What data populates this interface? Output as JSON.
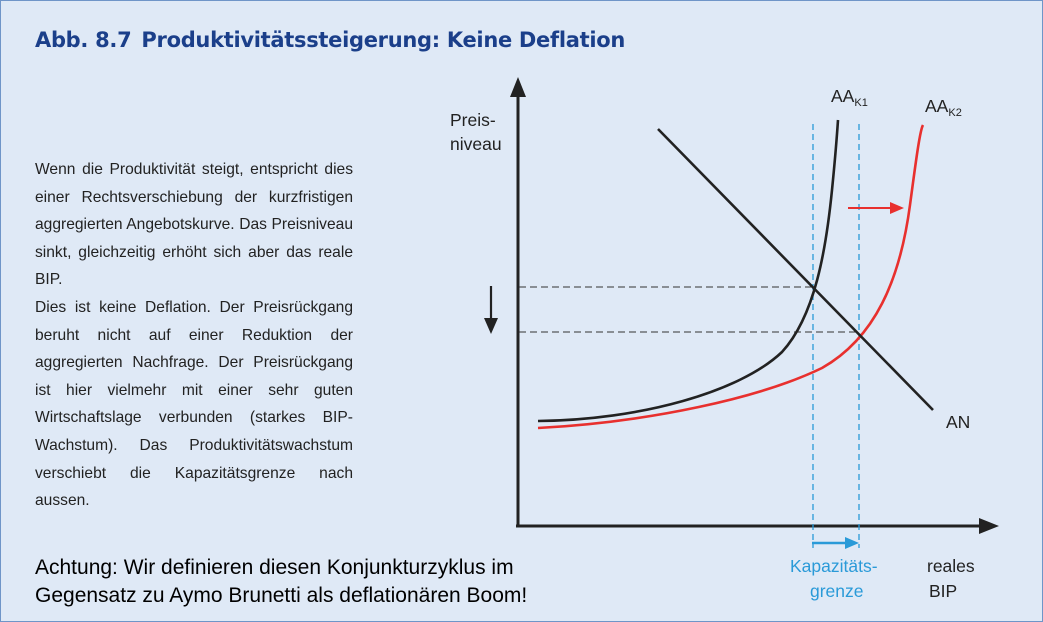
{
  "title": {
    "number": "Abb. 8.7",
    "text": "Produktivitätssteigerung: Keine Deflation"
  },
  "description": {
    "paragraph_1": "Wenn die Produktivität steigt, entspricht dies einer Rechtsverschiebung der kurzfristigen aggregierten Angebotskurve. Das Preisniveau sinkt, gleichzeitig erhöht sich aber das reale BIP.",
    "paragraph_2": "Dies ist keine Deflation. Der Preisrückgang beruht nicht auf einer Reduktion der aggregierten Nachfrage. Der Preisrückgang ist hier vielmehr mit einer sehr guten Wirtschaftslage verbunden (starkes BIP-Wachstum). Das Produktivitätswachstum verschiebt die Kapazitätsgrenze nach aussen."
  },
  "note": {
    "line_1": "Achtung: Wir definieren diesen Konjunkturzyklus im",
    "line_2": "Gegensatz zu Aymo Brunetti als deflationären Boom!"
  },
  "diagram": {
    "y_axis_label_1": "Preis-",
    "y_axis_label_2": "niveau",
    "x_axis_label_1": "reales",
    "x_axis_label_2": "BIP",
    "capacity_label_1": "Kapazitäts-",
    "capacity_label_2": "grenze",
    "curve_aa1_main": "AA",
    "curve_aa1_sub": "K1",
    "curve_aa2_main": "AA",
    "curve_aa2_sub": "K2",
    "curve_an": "AN"
  },
  "colors": {
    "background": "#dfe9f6",
    "border": "#6f95c8",
    "title": "#1b3f8a",
    "curve_aa1": "#222222",
    "curve_aa2": "#e8302e",
    "capacity_lines": "#2a9ad8"
  }
}
